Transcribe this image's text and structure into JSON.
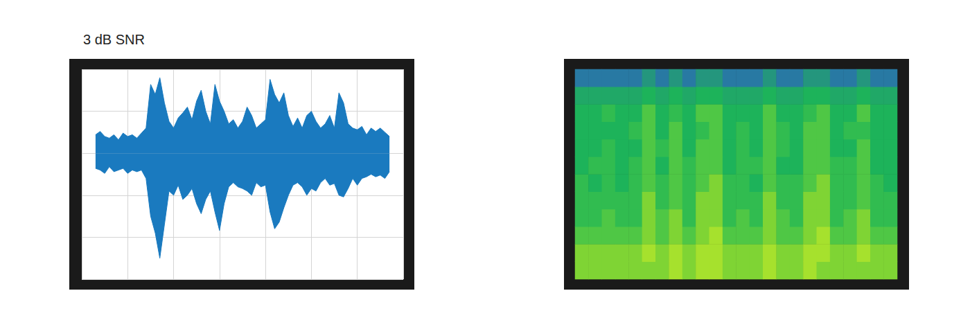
{
  "chart_data": [
    {
      "type": "line",
      "title": "3 dB SNR",
      "color": "#1a7abf",
      "grid": true,
      "tick_labels": false,
      "xlim": [
        0,
        7
      ],
      "xticks": [
        0,
        1,
        2,
        3,
        4,
        5,
        6,
        7
      ],
      "ylim": [
        -1.5,
        1
      ],
      "yticks": [
        -1.5,
        -1,
        -0.5,
        0,
        0.5,
        1
      ],
      "x": [
        0.3,
        0.4,
        0.5,
        0.6,
        0.7,
        0.8,
        0.9,
        1.0,
        1.1,
        1.2,
        1.3,
        1.4,
        1.5,
        1.6,
        1.7,
        1.8,
        1.9,
        2.0,
        2.1,
        2.2,
        2.3,
        2.4,
        2.5,
        2.6,
        2.7,
        2.8,
        2.9,
        3.0,
        3.1,
        3.2,
        3.3,
        3.4,
        3.5,
        3.6,
        3.7,
        3.8,
        3.9,
        4.0,
        4.1,
        4.2,
        4.3,
        4.4,
        4.5,
        4.6,
        4.7,
        4.8,
        4.9,
        5.0,
        5.1,
        5.2,
        5.3,
        5.4,
        5.5,
        5.6,
        5.7,
        5.8,
        5.9,
        6.0,
        6.1,
        6.2,
        6.3,
        6.4,
        6.5,
        6.6,
        6.7
      ],
      "upper": [
        0.22,
        0.26,
        0.2,
        0.18,
        0.22,
        0.16,
        0.24,
        0.2,
        0.22,
        0.18,
        0.24,
        0.3,
        0.82,
        0.7,
        0.9,
        0.6,
        0.38,
        0.3,
        0.42,
        0.48,
        0.55,
        0.4,
        0.62,
        0.75,
        0.5,
        0.35,
        0.82,
        0.62,
        0.5,
        0.35,
        0.4,
        0.3,
        0.38,
        0.55,
        0.45,
        0.3,
        0.35,
        0.4,
        0.88,
        0.7,
        0.6,
        0.72,
        0.45,
        0.32,
        0.42,
        0.3,
        0.45,
        0.5,
        0.38,
        0.3,
        0.35,
        0.45,
        0.3,
        0.72,
        0.6,
        0.35,
        0.3,
        0.28,
        0.32,
        0.22,
        0.3,
        0.26,
        0.3,
        0.25,
        0.2
      ],
      "lower": [
        -0.18,
        -0.2,
        -0.24,
        -0.16,
        -0.22,
        -0.2,
        -0.18,
        -0.24,
        -0.2,
        -0.22,
        -0.2,
        -0.3,
        -0.75,
        -0.95,
        -1.25,
        -0.85,
        -0.45,
        -0.5,
        -0.38,
        -0.55,
        -0.5,
        -0.42,
        -0.6,
        -0.72,
        -0.55,
        -0.45,
        -0.7,
        -0.92,
        -0.6,
        -0.4,
        -0.35,
        -0.4,
        -0.42,
        -0.45,
        -0.5,
        -0.35,
        -0.4,
        -0.38,
        -0.7,
        -0.9,
        -0.82,
        -0.65,
        -0.5,
        -0.38,
        -0.35,
        -0.4,
        -0.5,
        -0.42,
        -0.45,
        -0.35,
        -0.3,
        -0.38,
        -0.36,
        -0.5,
        -0.52,
        -0.42,
        -0.3,
        -0.38,
        -0.3,
        -0.28,
        -0.25,
        -0.28,
        -0.26,
        -0.3,
        -0.22
      ]
    },
    {
      "type": "heatmap",
      "grid": false,
      "tick_labels": false,
      "color_range": [
        0,
        10
      ],
      "cells": [
        [
          8,
          8,
          8,
          8,
          8,
          8,
          8,
          9,
          8,
          9,
          9,
          8,
          8,
          8,
          9,
          8,
          8,
          9,
          8,
          8,
          8,
          8,
          8,
          8
        ],
        [
          8,
          8,
          8,
          8,
          8,
          9,
          8,
          9,
          8,
          9,
          9,
          8,
          8,
          8,
          9,
          8,
          8,
          9,
          9,
          8,
          8,
          9,
          8,
          8
        ],
        [
          7,
          7,
          7,
          7,
          7,
          8,
          7,
          8,
          7,
          8,
          9,
          7,
          7,
          7,
          8,
          7,
          7,
          8,
          9,
          7,
          7,
          8,
          7,
          7
        ],
        [
          6,
          6,
          7,
          6,
          6,
          8,
          7,
          8,
          6,
          8,
          8,
          6,
          7,
          6,
          8,
          7,
          6,
          8,
          8,
          6,
          7,
          8,
          6,
          6
        ],
        [
          6,
          6,
          6,
          6,
          6,
          8,
          6,
          7,
          6,
          8,
          8,
          6,
          6,
          6,
          8,
          6,
          6,
          8,
          8,
          6,
          6,
          7,
          6,
          6
        ],
        [
          6,
          5,
          6,
          5,
          6,
          7,
          6,
          7,
          6,
          7,
          8,
          6,
          6,
          5,
          7,
          6,
          6,
          7,
          8,
          6,
          6,
          7,
          6,
          5
        ],
        [
          5,
          6,
          6,
          5,
          6,
          7,
          5,
          7,
          6,
          7,
          7,
          5,
          6,
          6,
          7,
          5,
          5,
          7,
          7,
          6,
          6,
          7,
          5,
          5
        ],
        [
          5,
          5,
          6,
          5,
          5,
          7,
          6,
          7,
          5,
          7,
          7,
          5,
          6,
          5,
          7,
          6,
          5,
          7,
          7,
          5,
          5,
          7,
          5,
          5
        ],
        [
          5,
          5,
          5,
          5,
          6,
          7,
          5,
          7,
          5,
          6,
          7,
          5,
          6,
          5,
          7,
          6,
          5,
          7,
          7,
          5,
          6,
          6,
          5,
          5
        ],
        [
          5,
          5,
          6,
          5,
          5,
          7,
          5,
          6,
          5,
          7,
          7,
          5,
          5,
          5,
          7,
          5,
          5,
          6,
          7,
          5,
          5,
          7,
          5,
          5
        ],
        [
          4,
          4,
          4,
          4,
          4,
          5,
          4,
          5,
          4,
          5,
          5,
          4,
          4,
          4,
          5,
          4,
          4,
          5,
          5,
          4,
          4,
          5,
          4,
          4
        ],
        [
          2,
          2,
          2,
          2,
          2,
          3,
          2,
          3,
          2,
          3,
          3,
          2,
          2,
          2,
          3,
          2,
          2,
          3,
          3,
          2,
          2,
          3,
          2,
          2
        ]
      ]
    }
  ]
}
